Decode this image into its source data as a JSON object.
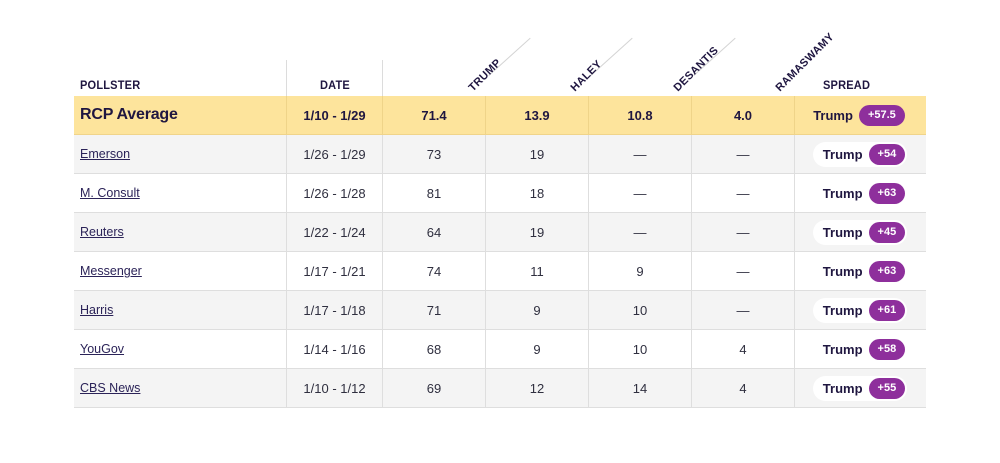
{
  "headers": {
    "pollster": "POLLSTER",
    "date": "DATE",
    "candidates": [
      "TRUMP",
      "HALEY",
      "DESANTIS",
      "RAMASWAMY"
    ],
    "spread": "SPREAD"
  },
  "average": {
    "name": "RCP Average",
    "date": "1/10 - 1/29",
    "values": [
      "71.4",
      "13.9",
      "10.8",
      "4.0"
    ],
    "spread_leader": "Trump",
    "spread_margin": "+57.5"
  },
  "polls": [
    {
      "name": "Emerson",
      "date": "1/26 - 1/29",
      "values": [
        "73",
        "19",
        "—",
        "—"
      ],
      "spread_leader": "Trump",
      "spread_margin": "+54"
    },
    {
      "name": "M. Consult",
      "date": "1/26 - 1/28",
      "values": [
        "81",
        "18",
        "—",
        "—"
      ],
      "spread_leader": "Trump",
      "spread_margin": "+63"
    },
    {
      "name": "Reuters",
      "date": "1/22 - 1/24",
      "values": [
        "64",
        "19",
        "—",
        "—"
      ],
      "spread_leader": "Trump",
      "spread_margin": "+45"
    },
    {
      "name": "Messenger",
      "date": "1/17 - 1/21",
      "values": [
        "74",
        "11",
        "9",
        "—"
      ],
      "spread_leader": "Trump",
      "spread_margin": "+63"
    },
    {
      "name": "Harris",
      "date": "1/17 - 1/18",
      "values": [
        "71",
        "9",
        "10",
        "—"
      ],
      "spread_leader": "Trump",
      "spread_margin": "+61"
    },
    {
      "name": "YouGov",
      "date": "1/14 - 1/16",
      "values": [
        "68",
        "9",
        "10",
        "4"
      ],
      "spread_leader": "Trump",
      "spread_margin": "+58"
    },
    {
      "name": "CBS News",
      "date": "1/10 - 1/12",
      "values": [
        "69",
        "12",
        "14",
        "4"
      ],
      "spread_leader": "Trump",
      "spread_margin": "+55"
    }
  ],
  "colors": {
    "average_row": "#fde49c",
    "spread_badge": "#8e2f9c",
    "alt_row": "#f4f4f4"
  }
}
